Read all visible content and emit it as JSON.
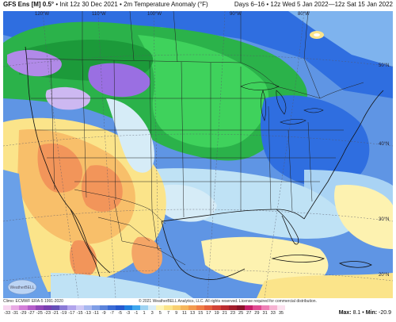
{
  "header": {
    "model": "GFS Ens [M] 0.5°",
    "init": "Init 12z 30 Dec 2021",
    "field": "2m Temperature Anomaly (°F)",
    "separator": "•",
    "valid": "Days 6–16 • 12z Wed 5 Jan 2022—12z Sat 15 Jan 2022"
  },
  "map": {
    "longitude_labels": [
      "120°W",
      "110°W",
      "100°W",
      "90°W",
      "80°W"
    ],
    "latitude_labels": [
      "50°N",
      "40°N",
      "30°N",
      "20°N"
    ],
    "colors": {
      "ocean_background": "#6aa0e8",
      "strong_cold": "#b07ee8",
      "cold": "#1ea23a",
      "mild_cold": "#2a6fe0",
      "near_normal": "#bfe2f5",
      "warm": "#fbe48a",
      "warmer": "#f8bf6a",
      "hot": "#f2955a"
    }
  },
  "footer": {
    "climo": "Climo: ECMWF ERA-5 1991-2020",
    "copyright": "© 2021 WeatherBELL Analytics, LLC. All rights reserved. License required for commercial distribution.",
    "max_label": "Max:",
    "max_value": "8.1",
    "min_label": "Min:",
    "min_value": "-20.9",
    "logo_text": "WeatherBELL"
  },
  "colorbar": {
    "ticks": [
      "-33",
      "-31",
      "-29",
      "-27",
      "-25",
      "-23",
      "-21",
      "-19",
      "-17",
      "-15",
      "-13",
      "-11",
      "-9",
      "-7",
      "-5",
      "-3",
      "-1",
      "1",
      "3",
      "5",
      "7",
      "9",
      "11",
      "13",
      "15",
      "17",
      "19",
      "21",
      "23",
      "25",
      "27",
      "29",
      "31",
      "33",
      "35"
    ],
    "colors": [
      "#f7d6f0",
      "#e9a9e4",
      "#d37fd8",
      "#b55ec9",
      "#9348b8",
      "#7a3fb1",
      "#6650b8",
      "#8a7ad6",
      "#b1a4ec",
      "#cfc8f5",
      "#a8b8f0",
      "#7f9ee6",
      "#5c84db",
      "#3b6cd6",
      "#2659cf",
      "#1f7fe0",
      "#3fa7ee",
      "#9fd3f2",
      "#d9edf7",
      "#fdf4b6",
      "#fbe48a",
      "#f8cf71",
      "#f6b65c",
      "#f39a4e",
      "#ef7d45",
      "#e45f3c",
      "#d34336",
      "#bc2c30",
      "#a31d2c",
      "#8a1229",
      "#c71e69",
      "#e04b92",
      "#ee7fb6",
      "#f6b2d2",
      "#fbe0ee"
    ]
  }
}
